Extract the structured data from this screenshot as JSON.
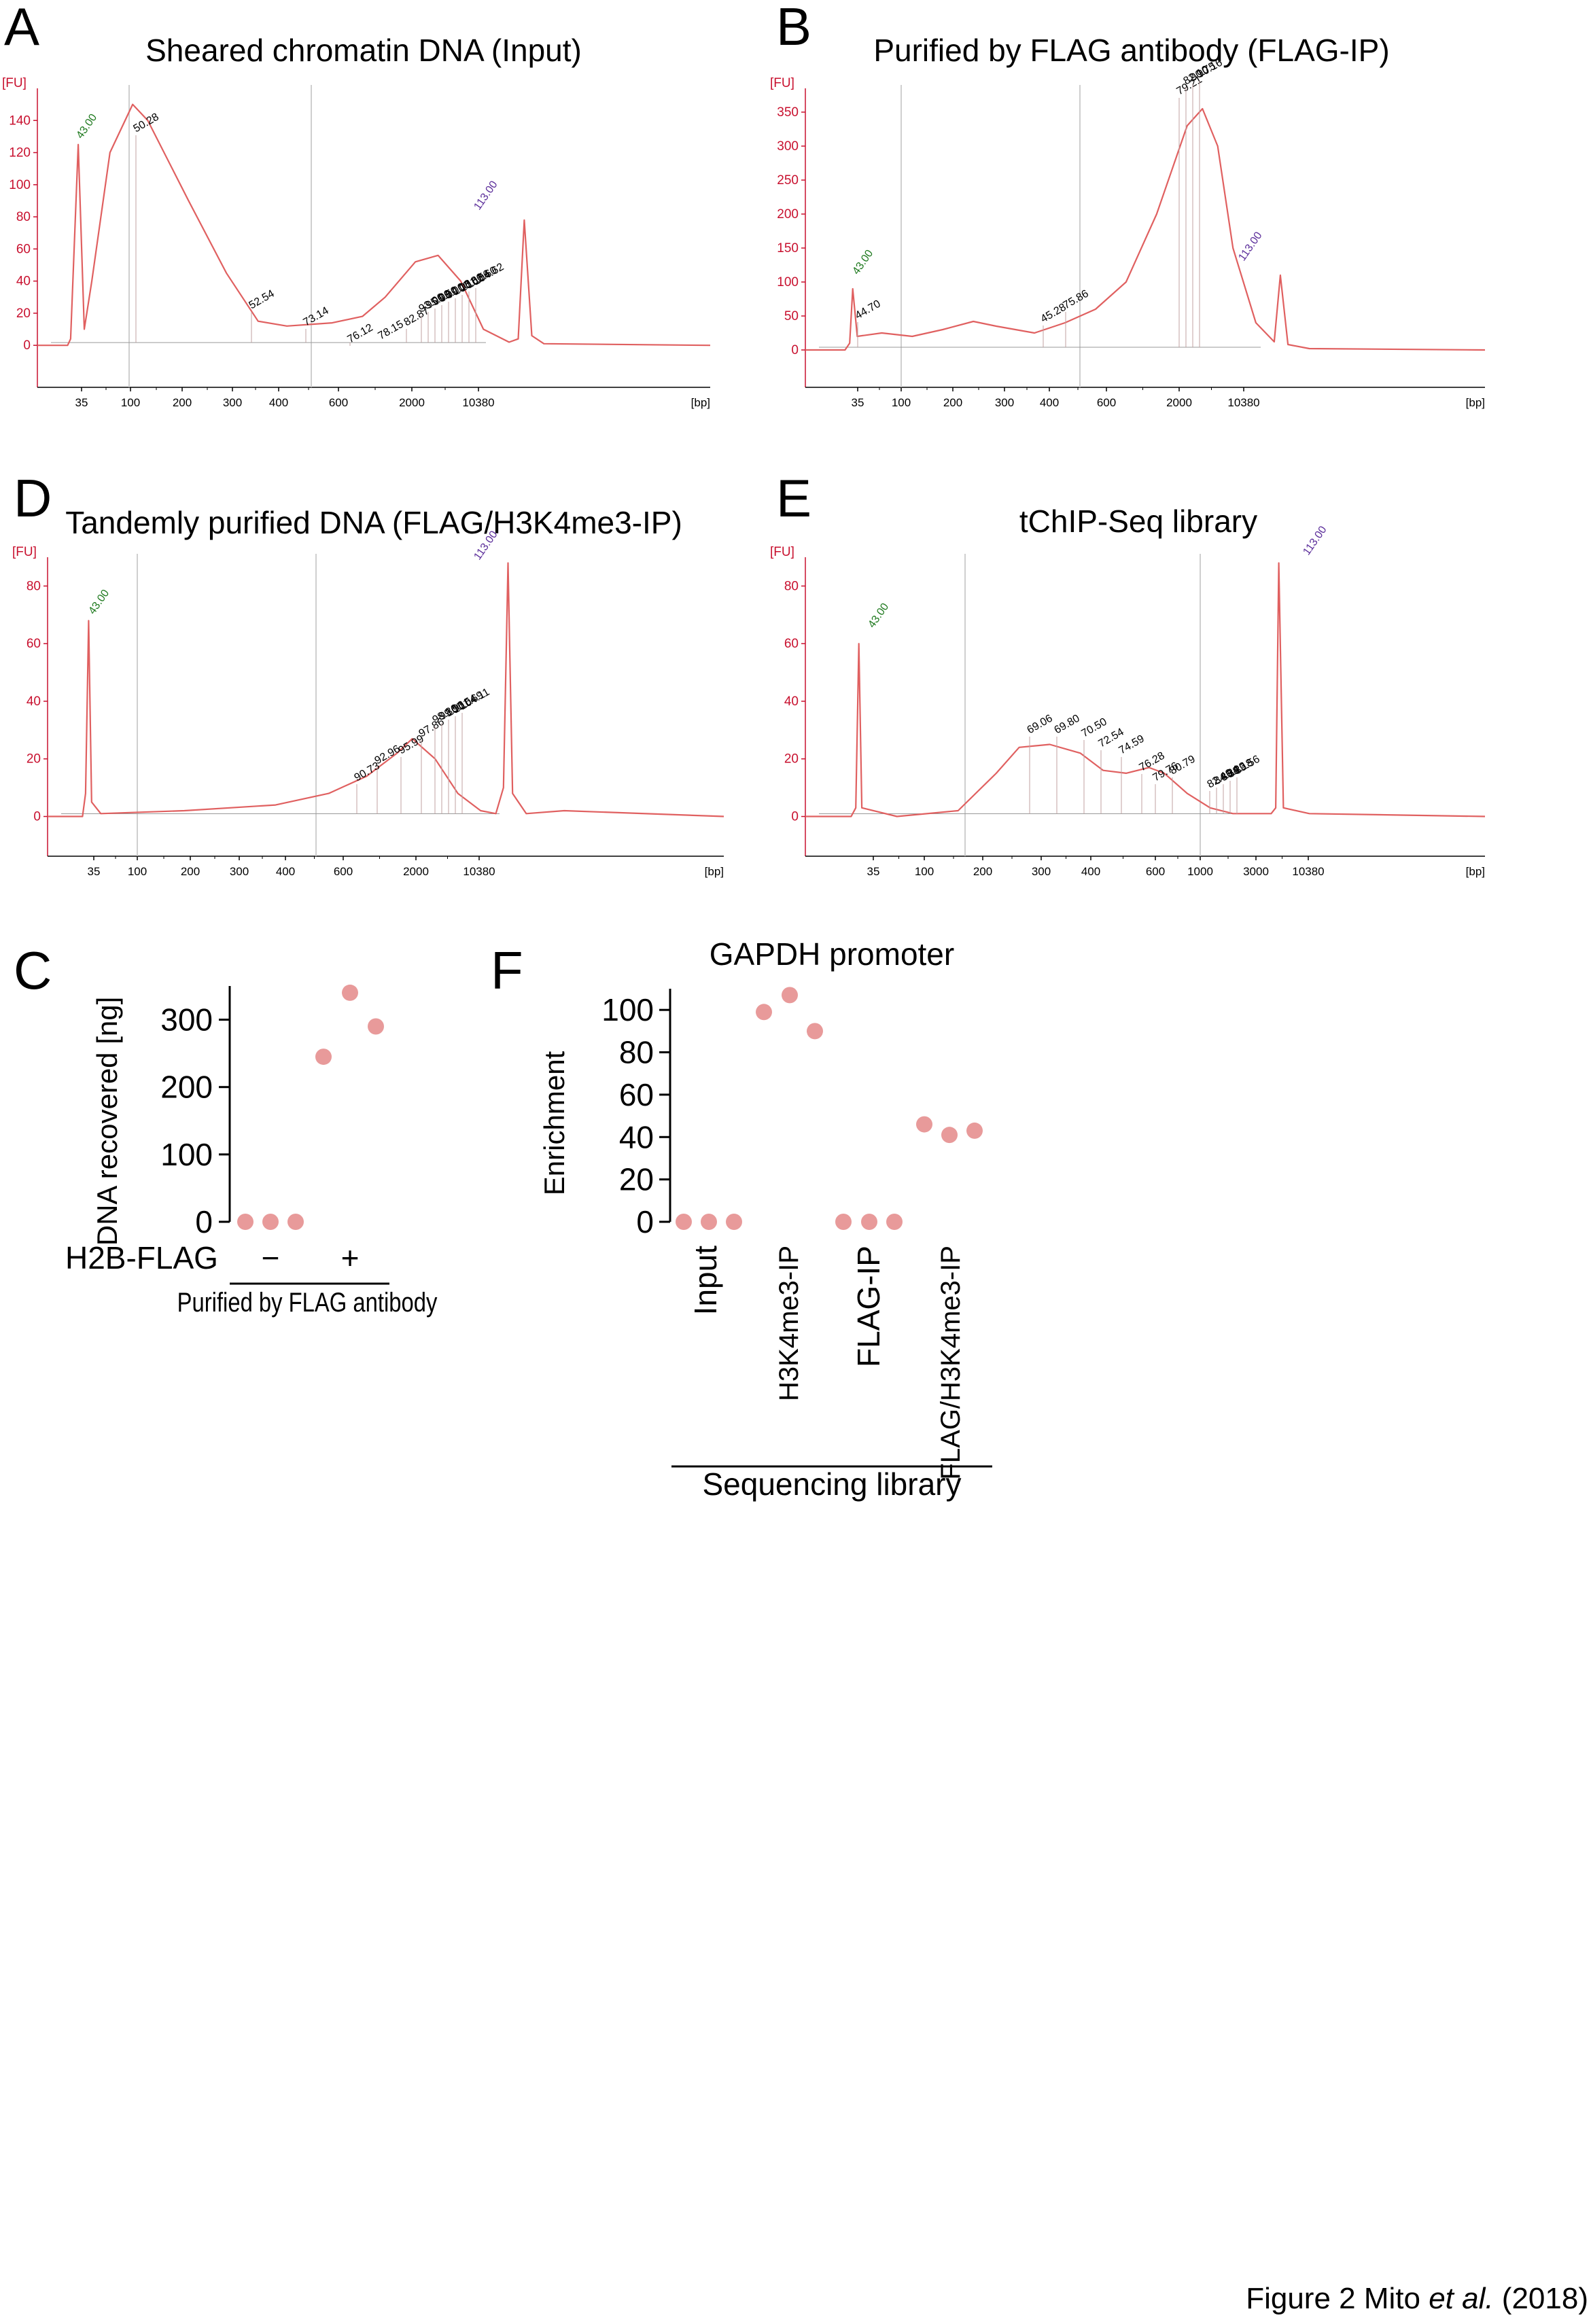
{
  "figure_caption": {
    "prefix": "Figure 2 Mito ",
    "italic": "et al.",
    "suffix": " (2018)"
  },
  "colors": {
    "trace": "#e06060",
    "axis_red": "#c8102e",
    "ladder_low": "#1f7a1f",
    "ladder_high": "#5b2d9a",
    "dot": "#e89a9a"
  },
  "chart_data": [
    {
      "panel": "A",
      "type": "line",
      "title": "Sheared chromatin DNA (Input)",
      "y_unit": "[FU]",
      "x_unit": "[bp]",
      "yticks": [
        0,
        20,
        40,
        60,
        80,
        100,
        120,
        140
      ],
      "ylim": [
        -5,
        160
      ],
      "xticks": [
        "35",
        "100",
        "200",
        "300",
        "400",
        "600",
        "2000",
        "10380"
      ],
      "ladder_labels": {
        "low": "43.00",
        "high": "113.00"
      },
      "peak_labels": [
        "50.28",
        "52.54",
        "73.14",
        "76.12",
        "78.15",
        "82.87",
        "93.00",
        "95.00",
        "96.50",
        "98.00",
        "99.08",
        "100.86",
        "101.56",
        "102.60",
        "104.62"
      ],
      "trace": [
        [
          0,
          0
        ],
        [
          2,
          0
        ],
        [
          2.2,
          4
        ],
        [
          2.7,
          125
        ],
        [
          3.1,
          10
        ],
        [
          3.6,
          40
        ],
        [
          4.8,
          120
        ],
        [
          6.3,
          150
        ],
        [
          7.3,
          140
        ],
        [
          10,
          90
        ],
        [
          12.5,
          45
        ],
        [
          14.6,
          15
        ],
        [
          16.5,
          12
        ],
        [
          19.5,
          14
        ],
        [
          21.5,
          18
        ],
        [
          23,
          30
        ],
        [
          25,
          52
        ],
        [
          26.5,
          56
        ],
        [
          28,
          40
        ],
        [
          29.5,
          10
        ],
        [
          31.2,
          2
        ],
        [
          31.8,
          4
        ],
        [
          32.2,
          78
        ],
        [
          32.7,
          6
        ],
        [
          33.5,
          1
        ],
        [
          44.5,
          0
        ]
      ]
    },
    {
      "panel": "B",
      "type": "line",
      "title": "Purified by FLAG antibody (FLAG-IP)",
      "y_unit": "[FU]",
      "x_unit": "[bp]",
      "yticks": [
        0,
        50,
        100,
        150,
        200,
        250,
        300,
        350
      ],
      "ylim": [
        -5,
        385
      ],
      "xticks": [
        "35",
        "100",
        "200",
        "300",
        "400",
        "600",
        "2000",
        "10380"
      ],
      "ladder_labels": {
        "low": "43.00",
        "high": "113.00"
      },
      "peak_labels": [
        "44.70",
        "45.28",
        "75.86",
        "79.21",
        "82.10",
        "90.75",
        "90.16"
      ],
      "trace": [
        [
          0,
          0
        ],
        [
          2.6,
          0
        ],
        [
          2.9,
          10
        ],
        [
          3.1,
          90
        ],
        [
          3.4,
          20
        ],
        [
          5,
          25
        ],
        [
          7,
          20
        ],
        [
          9,
          30
        ],
        [
          11,
          42
        ],
        [
          12.5,
          35
        ],
        [
          15,
          25
        ],
        [
          17,
          40
        ],
        [
          19,
          60
        ],
        [
          21,
          100
        ],
        [
          23,
          200
        ],
        [
          25,
          330
        ],
        [
          26,
          355
        ],
        [
          27,
          300
        ],
        [
          28,
          150
        ],
        [
          29.5,
          40
        ],
        [
          30.7,
          12
        ],
        [
          31.1,
          110
        ],
        [
          31.6,
          8
        ],
        [
          33,
          2
        ],
        [
          44.5,
          0
        ]
      ]
    },
    {
      "panel": "D",
      "type": "line",
      "title": "Tandemly purified DNA (FLAG/H3K4me3-IP)",
      "y_unit": "[FU]",
      "x_unit": "[bp]",
      "yticks": [
        0,
        20,
        40,
        60,
        80
      ],
      "ylim": [
        -2,
        90
      ],
      "xticks": [
        "35",
        "100",
        "200",
        "300",
        "400",
        "600",
        "2000",
        "10380"
      ],
      "ladder_labels": {
        "low": "43.00",
        "high": "113.00"
      },
      "peak_labels": [
        "90.73",
        "92.96",
        "95.99",
        "97.86",
        "98.86",
        "99.96",
        "100.54",
        "101.69",
        "104.11"
      ],
      "trace": [
        [
          0,
          0
        ],
        [
          2.3,
          0
        ],
        [
          2.5,
          8
        ],
        [
          2.7,
          68
        ],
        [
          2.9,
          5
        ],
        [
          3.5,
          1
        ],
        [
          9,
          2
        ],
        [
          15,
          4
        ],
        [
          18.5,
          8
        ],
        [
          21,
          14
        ],
        [
          23,
          22
        ],
        [
          24,
          27
        ],
        [
          25.5,
          20
        ],
        [
          27,
          8
        ],
        [
          28.5,
          2
        ],
        [
          29.5,
          1
        ],
        [
          30,
          10
        ],
        [
          30.3,
          88
        ],
        [
          30.6,
          8
        ],
        [
          31.5,
          1
        ],
        [
          34,
          2
        ],
        [
          44.5,
          0
        ]
      ]
    },
    {
      "panel": "E",
      "type": "line",
      "title": "tChIP-Seq library",
      "y_unit": "[FU]",
      "x_unit": "[bp]",
      "yticks": [
        0,
        20,
        40,
        60,
        80
      ],
      "ylim": [
        -2,
        90
      ],
      "xticks": [
        "35",
        "100",
        "200",
        "300",
        "400",
        "600",
        "1000",
        "3000",
        "10380"
      ],
      "ladder_labels": {
        "low": "43.00",
        "high": "113.00"
      },
      "peak_labels": [
        "69.06",
        "69.80",
        "70.50",
        "72.54",
        "74.59",
        "76.28",
        "79.76",
        "80.79",
        "82.49",
        "84.34",
        "86.23",
        "88.18",
        "89.56"
      ],
      "trace": [
        [
          0,
          0
        ],
        [
          3,
          0
        ],
        [
          3.3,
          3
        ],
        [
          3.5,
          60
        ],
        [
          3.7,
          3
        ],
        [
          6,
          0
        ],
        [
          10,
          2
        ],
        [
          12.5,
          15
        ],
        [
          14,
          24
        ],
        [
          16,
          25
        ],
        [
          18,
          22
        ],
        [
          19.5,
          16
        ],
        [
          21,
          15
        ],
        [
          22.5,
          17
        ],
        [
          23.5,
          15
        ],
        [
          25,
          8
        ],
        [
          26.5,
          3
        ],
        [
          28,
          1
        ],
        [
          30.5,
          1
        ],
        [
          30.8,
          3
        ],
        [
          31,
          88
        ],
        [
          31.3,
          3
        ],
        [
          33,
          1
        ],
        [
          44.5,
          0
        ]
      ]
    },
    {
      "panel": "C",
      "type": "scatter",
      "ylabel": "DNA recovered [ng]",
      "yticks": [
        0,
        100,
        200,
        300
      ],
      "ylim": [
        0,
        350
      ],
      "row_label": "H2B-FLAG",
      "groups": [
        {
          "sign": "−",
          "values": [
            0,
            0,
            0
          ]
        },
        {
          "sign": "+",
          "values": [
            245,
            340,
            290
          ]
        }
      ],
      "bracket_label": "Purified by FLAG antibody"
    },
    {
      "panel": "F",
      "type": "scatter",
      "title": "GAPDH promoter",
      "ylabel": "Enrichment",
      "yticks": [
        0,
        20,
        40,
        60,
        80,
        100
      ],
      "ylim": [
        0,
        110
      ],
      "categories": [
        "Input",
        "H3K4me3-IP",
        "FLAG-IP",
        "FLAG/H3K4me3-IP"
      ],
      "values": [
        [
          0,
          0,
          0
        ],
        [
          99,
          107,
          90
        ],
        [
          0,
          0,
          0
        ],
        [
          46,
          41,
          43
        ]
      ],
      "bracket_label": "Sequencing library"
    }
  ]
}
